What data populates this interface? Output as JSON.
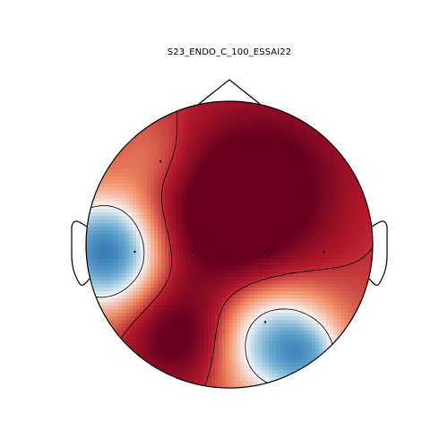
{
  "chart_data": {
    "type": "heatmap",
    "subtype": "eeg-topomap",
    "title": "S23_ENDO_C_100_ESSAI22",
    "xlabel": "",
    "ylabel": "",
    "colormap": "RdBu_r",
    "colors": {
      "red_max": "#67001f",
      "red": "#b2182b",
      "red_light": "#ef8a62",
      "neutral": "#f7f7f7",
      "blue_light": "#67a9cf",
      "blue": "#2166ac",
      "blue_max": "#053061",
      "outline": "#000000"
    },
    "value_range": [
      -1,
      1
    ],
    "sources": [
      {
        "x": -0.85,
        "y": -0.05,
        "value": -1.15,
        "sigma": 0.28
      },
      {
        "x": 0.02,
        "y": 0.2,
        "value": 0.75,
        "sigma": 0.4
      },
      {
        "x": -0.35,
        "y": -0.65,
        "value": 0.55,
        "sigma": 0.25
      },
      {
        "x": 0.3,
        "y": -0.65,
        "value": -0.85,
        "sigma": 0.3
      },
      {
        "x": 0.55,
        "y": -0.8,
        "value": -0.45,
        "sigma": 0.18
      },
      {
        "x": 0.4,
        "y": 0.6,
        "value": 0.25,
        "sigma": 0.4
      },
      {
        "x": -0.5,
        "y": 0.6,
        "value": -0.25,
        "sigma": 0.22
      }
    ],
    "base_value": 0.55,
    "contour_levels": [
      -0.6,
      0.0,
      0.6
    ],
    "sensors": [
      {
        "x": -0.48,
        "y": 0.58
      },
      {
        "x": 0.48,
        "y": 0.67
      },
      {
        "x": -0.66,
        "y": -0.05
      },
      {
        "x": -0.25,
        "y": -0.05
      },
      {
        "x": 0.25,
        "y": -0.05
      },
      {
        "x": 0.66,
        "y": -0.05
      },
      {
        "x": 0.25,
        "y": -0.54
      }
    ]
  }
}
